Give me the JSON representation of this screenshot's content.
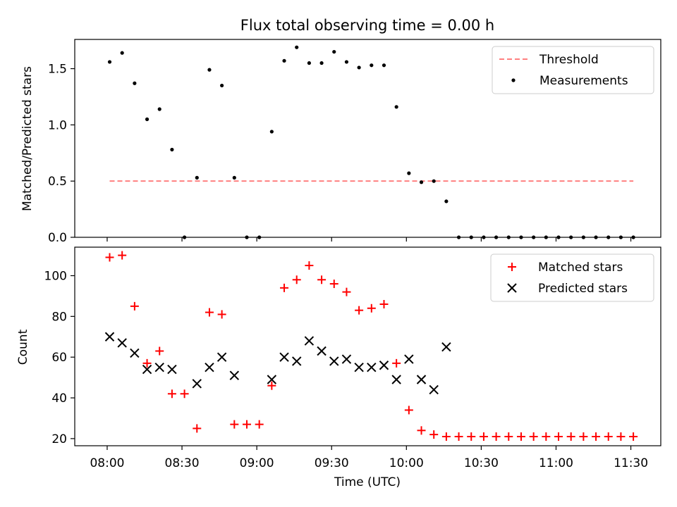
{
  "chart_data": [
    {
      "type": "scatter",
      "title": "Flux total observing time = 0.00 h",
      "ylabel": "Matched/Predicted stars",
      "xlim": [
        "07:47",
        "11:42"
      ],
      "ylim": [
        0,
        1.76
      ],
      "yticks": [
        0.0,
        0.5,
        1.0,
        1.5
      ],
      "yticklabels": [
        "0.0",
        "0.5",
        "1.0",
        "1.5"
      ],
      "legend_position": "top-right",
      "threshold": {
        "name": "Threshold",
        "value": 0.5,
        "x_start": "08:01",
        "x_end": "11:31",
        "color": "#ff8080",
        "style": "dashed"
      },
      "series": [
        {
          "name": "Measurements",
          "marker": "dot",
          "color": "#000000",
          "x": [
            "08:01",
            "08:06",
            "08:11",
            "08:16",
            "08:21",
            "08:26",
            "08:31",
            "08:36",
            "08:41",
            "08:46",
            "08:51",
            "08:56",
            "09:01",
            "09:06",
            "09:11",
            "09:16",
            "09:21",
            "09:26",
            "09:31",
            "09:36",
            "09:41",
            "09:46",
            "09:51",
            "09:56",
            "10:01",
            "10:06",
            "10:11",
            "10:16",
            "10:21",
            "10:26",
            "10:31",
            "10:36",
            "10:41",
            "10:46",
            "10:51",
            "10:56",
            "11:01",
            "11:06",
            "11:11",
            "11:16",
            "11:21",
            "11:26",
            "11:31"
          ],
          "y": [
            1.56,
            1.64,
            1.37,
            1.05,
            1.14,
            0.78,
            0.0,
            0.53,
            1.49,
            1.35,
            0.53,
            0.0,
            0.0,
            0.94,
            1.57,
            1.69,
            1.55,
            1.55,
            1.65,
            1.56,
            1.51,
            1.53,
            1.53,
            1.16,
            0.57,
            0.49,
            0.5,
            0.32,
            0.0,
            0.0,
            0.0,
            0.0,
            0.0,
            0.0,
            0.0,
            0.0,
            0.0,
            0.0,
            0.0,
            0.0,
            0.0,
            0.0,
            0.0
          ]
        }
      ]
    },
    {
      "type": "scatter",
      "xlabel": "Time (UTC)",
      "ylabel": "Count",
      "xlim": [
        "07:47",
        "11:42"
      ],
      "ylim": [
        16.5,
        114
      ],
      "xticks": [
        "08:00",
        "08:30",
        "09:00",
        "09:30",
        "10:00",
        "10:30",
        "11:00",
        "11:30"
      ],
      "yticks": [
        20,
        40,
        60,
        80,
        100
      ],
      "yticklabels": [
        "20",
        "40",
        "60",
        "80",
        "100"
      ],
      "legend_position": "top-right",
      "series": [
        {
          "name": "Matched stars",
          "marker": "plus",
          "color": "#ff0000",
          "x": [
            "08:01",
            "08:06",
            "08:11",
            "08:16",
            "08:21",
            "08:26",
            "08:31",
            "08:36",
            "08:41",
            "08:46",
            "08:51",
            "08:56",
            "09:01",
            "09:06",
            "09:11",
            "09:16",
            "09:21",
            "09:26",
            "09:31",
            "09:36",
            "09:41",
            "09:46",
            "09:51",
            "09:56",
            "10:01",
            "10:06",
            "10:11",
            "10:16",
            "10:21",
            "10:26",
            "10:31",
            "10:36",
            "10:41",
            "10:46",
            "10:51",
            "10:56",
            "11:01",
            "11:06",
            "11:11",
            "11:16",
            "11:21",
            "11:26",
            "11:31"
          ],
          "y": [
            109,
            110,
            85,
            57,
            63,
            42,
            42,
            25,
            82,
            81,
            27,
            27,
            27,
            46,
            94,
            98,
            105,
            98,
            96,
            92,
            83,
            84,
            86,
            57,
            34,
            24,
            22,
            21,
            21,
            21,
            21,
            21,
            21,
            21,
            21,
            21,
            21,
            21,
            21,
            21,
            21,
            21,
            21
          ]
        },
        {
          "name": "Predicted stars",
          "marker": "x",
          "color": "#000000",
          "x": [
            "08:01",
            "08:06",
            "08:11",
            "08:16",
            "08:21",
            "08:26",
            "08:36",
            "08:41",
            "08:46",
            "08:51",
            "09:06",
            "09:11",
            "09:16",
            "09:21",
            "09:26",
            "09:31",
            "09:36",
            "09:41",
            "09:46",
            "09:51",
            "09:56",
            "10:01",
            "10:06",
            "10:11",
            "10:16"
          ],
          "y": [
            70,
            67,
            62,
            54,
            55,
            54,
            47,
            55,
            60,
            51,
            49,
            60,
            58,
            68,
            63,
            58,
            59,
            55,
            55,
            56,
            49,
            59,
            49,
            44,
            65
          ]
        }
      ]
    }
  ]
}
